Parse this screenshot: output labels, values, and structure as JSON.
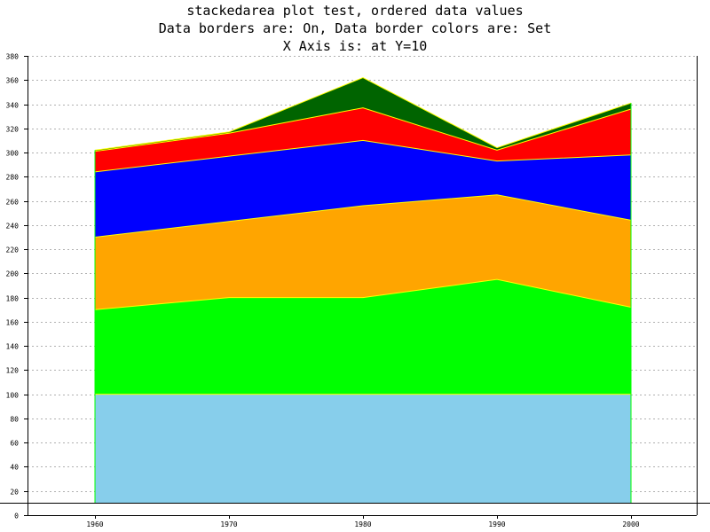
{
  "chart_data": {
    "type": "area",
    "stacked": true,
    "title_lines": [
      "stackedarea plot test, ordered data values",
      "Data borders are: On, Data border colors are: Set",
      "X Axis is: at Y=10"
    ],
    "xlabel": "",
    "ylabel": "",
    "categories": [
      "1960",
      "1970",
      "1980",
      "1990",
      "2000"
    ],
    "ylim": [
      0,
      380
    ],
    "yticks": [
      0,
      20,
      40,
      60,
      80,
      100,
      120,
      140,
      160,
      180,
      200,
      220,
      240,
      260,
      280,
      300,
      320,
      340,
      360,
      380
    ],
    "x_axis_at_y": 10,
    "grid": "horizontal dotted",
    "legend": "none",
    "data_border_color": "#ffff00",
    "series": [
      {
        "color": "#87ceeb",
        "values": [
          100,
          100,
          100,
          100,
          100
        ]
      },
      {
        "color": "#00ff00",
        "values": [
          70,
          80,
          80,
          95,
          72
        ]
      },
      {
        "color": "#ffa500",
        "values": [
          60,
          63,
          76,
          70,
          72
        ]
      },
      {
        "color": "#0000ff",
        "values": [
          54,
          54,
          54,
          28,
          54
        ]
      },
      {
        "color": "#ff0000",
        "values": [
          17,
          19,
          27,
          9,
          38
        ]
      },
      {
        "color": "#006400",
        "values": [
          1,
          1,
          25,
          2,
          5
        ]
      }
    ]
  }
}
